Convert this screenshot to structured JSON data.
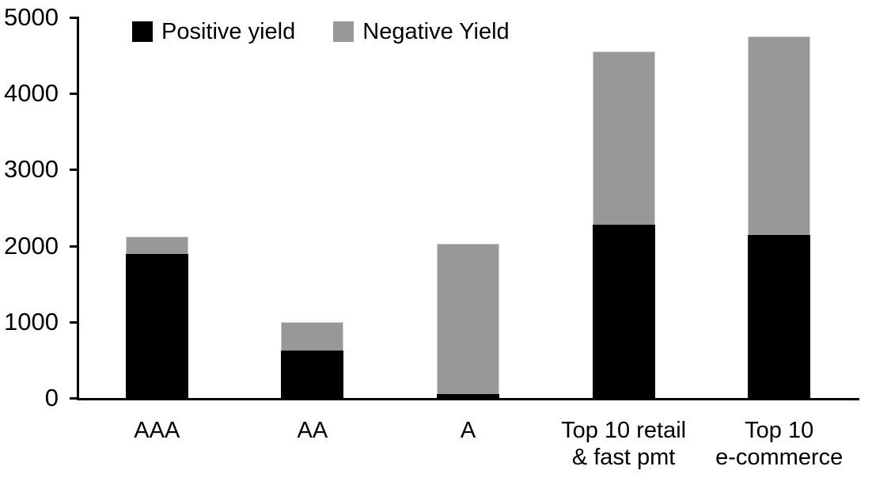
{
  "chart_data": {
    "type": "bar",
    "stacked": true,
    "title": "",
    "xlabel": "",
    "ylabel": "",
    "categories": [
      "AAA",
      "AA",
      "A",
      "Top 10 retail\n& fast pmt",
      "Top 10\ne-commerce"
    ],
    "series": [
      {
        "name": "Positive yield",
        "color": "#000000",
        "values": [
          1890,
          620,
          50,
          2280,
          2140
        ]
      },
      {
        "name": "Negative Yield",
        "color": "#989898",
        "values": [
          230,
          380,
          1975,
          2270,
          2610
        ]
      }
    ],
    "totals": [
      2120,
      1000,
      2025,
      4550,
      4750
    ],
    "ylim": [
      0,
      5000
    ],
    "yticks": [
      0,
      1000,
      2000,
      3000,
      4000,
      5000
    ],
    "ytick_labels": [
      "0",
      "1000",
      "2000",
      "3000",
      "4000",
      "5000"
    ],
    "grid": false,
    "legend_position": "top-left-inside",
    "colors": {
      "positive": "#000000",
      "negative": "#989898",
      "axis": "#000000",
      "background": "#ffffff"
    }
  }
}
